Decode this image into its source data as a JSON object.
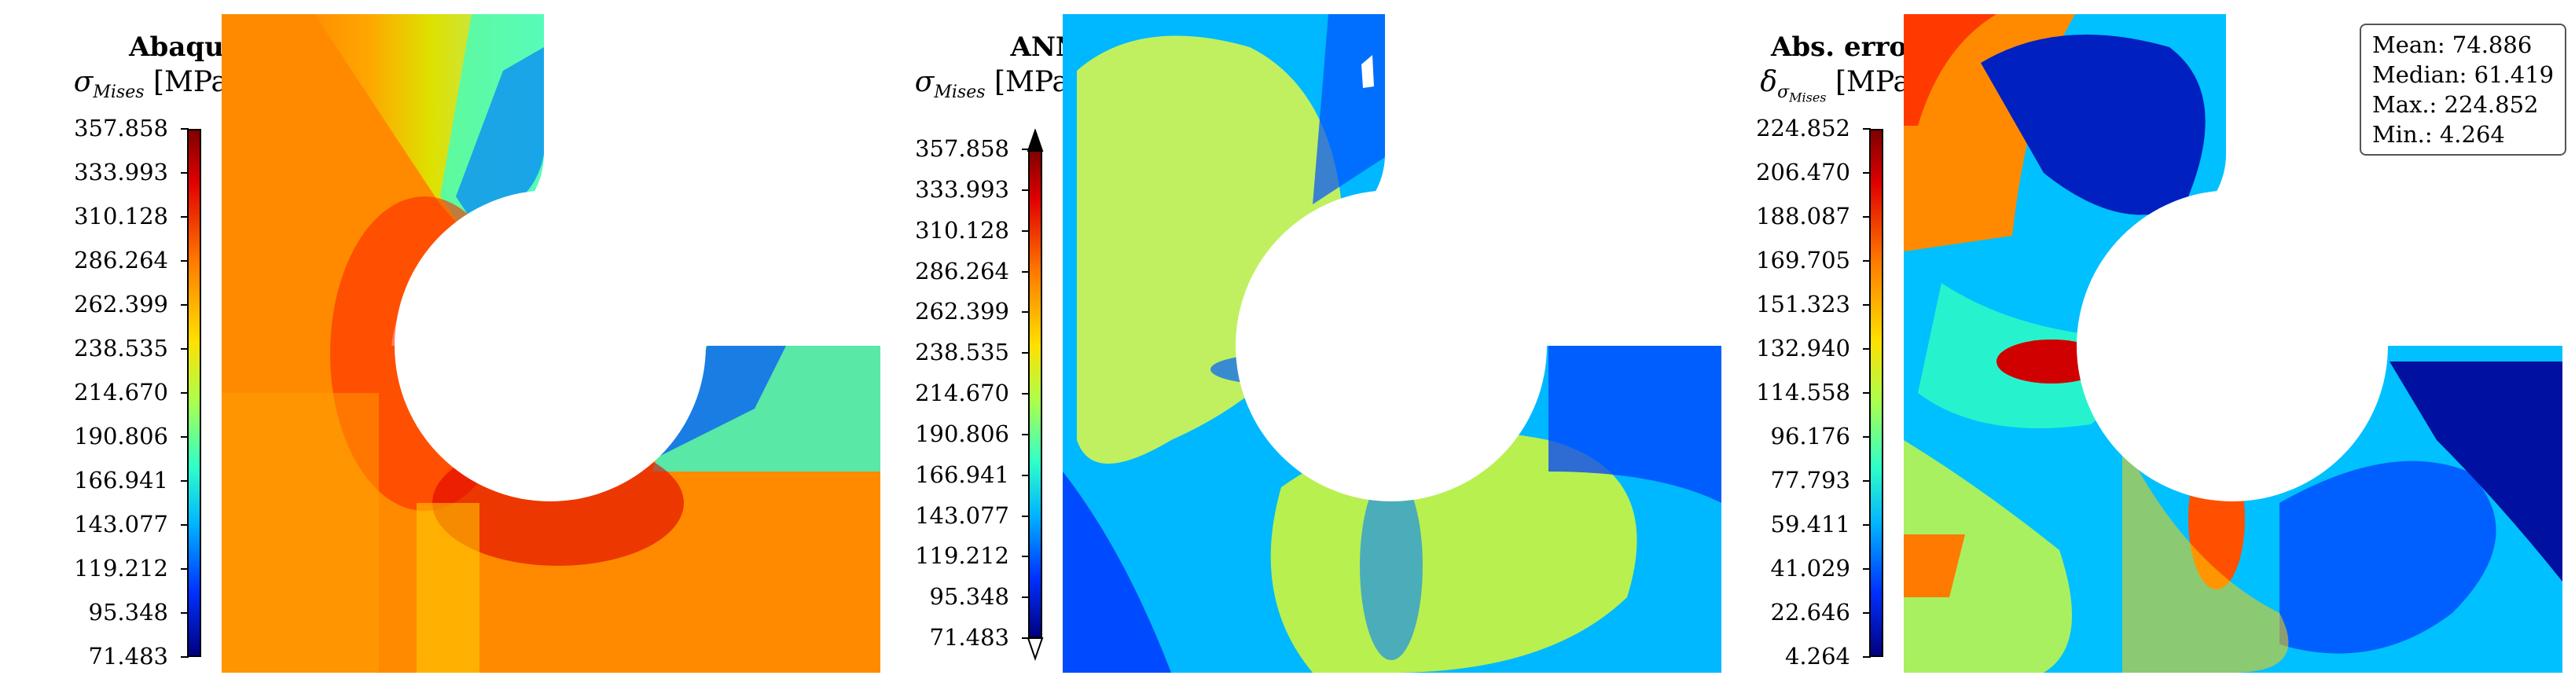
{
  "panels": [
    {
      "title": "Abaqus",
      "symbol": "σ",
      "subscript": "Mises",
      "unit": "[MPa]",
      "ticks": [
        "357.858",
        "333.993",
        "310.128",
        "286.264",
        "262.399",
        "238.535",
        "214.670",
        "190.806",
        "166.941",
        "143.077",
        "119.212",
        "95.348",
        "71.483"
      ],
      "colorbar": "jet"
    },
    {
      "title": "ANN",
      "symbol": "σ",
      "subscript": "Mises",
      "unit": "[MPa]",
      "ticks": [
        "357.858",
        "333.993",
        "310.128",
        "286.264",
        "262.399",
        "238.535",
        "214.670",
        "190.806",
        "166.941",
        "143.077",
        "119.212",
        "95.348",
        "71.483"
      ],
      "colorbar": "jet-extended"
    },
    {
      "title": "Abs. error",
      "symbol": "δ",
      "subscript": "σ",
      "subscript2": "Mises",
      "unit": "[MPa]",
      "ticks": [
        "224.852",
        "206.470",
        "188.087",
        "169.705",
        "151.323",
        "132.940",
        "114.558",
        "96.176",
        "77.793",
        "59.411",
        "41.029",
        "22.646",
        "4.264"
      ],
      "colorbar": "jet"
    }
  ],
  "stats": {
    "mean": "Mean: 74.886",
    "median": "Median: 61.419",
    "max": "Max.: 224.852",
    "min": "Min.: 4.264"
  },
  "colors": {
    "jet": [
      "#7f0000",
      "#d40000",
      "#ff3a00",
      "#ff8a00",
      "#ffd000",
      "#d8f000",
      "#8cff6e",
      "#3fffb8",
      "#00d8ff",
      "#0090ff",
      "#0040ff",
      "#0000c8",
      "#00007f"
    ]
  }
}
